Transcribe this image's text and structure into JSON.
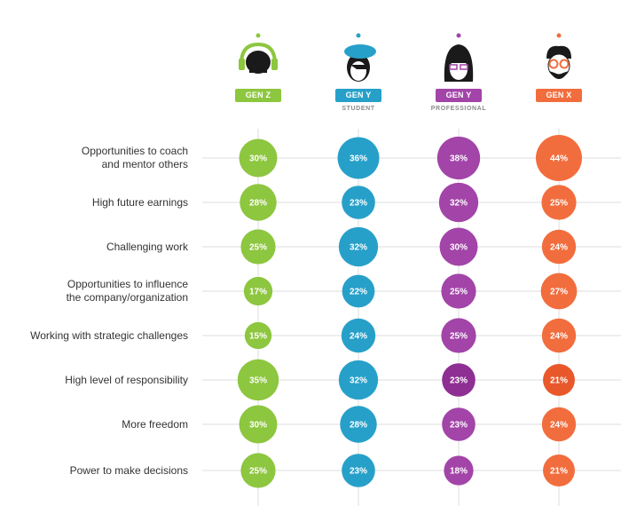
{
  "chart_data": {
    "type": "bubble",
    "groups": [
      {
        "label": "GEN Z",
        "sublabel": "",
        "color": "#8dc63f"
      },
      {
        "label": "GEN Y",
        "sublabel": "STUDENT",
        "color": "#27a0c9"
      },
      {
        "label": "GEN Y",
        "sublabel": "PROFESSIONAL",
        "color": "#a244a8"
      },
      {
        "label": "GEN X",
        "sublabel": "",
        "color": "#f26d3d"
      }
    ],
    "categories": [
      "Opportunities to coach and mentor others",
      "High future earnings",
      "Challenging work",
      "Opportunities to influence the company/organization",
      "Working with strategic challenges",
      "High level of responsibility",
      "More freedom",
      "Power to make decisions"
    ],
    "category_lines": [
      [
        "Opportunities to coach",
        "and mentor others"
      ],
      [
        "High future earnings"
      ],
      [
        "Challenging work"
      ],
      [
        "Opportunities to influence",
        "the company/organization"
      ],
      [
        "Working with strategic challenges"
      ],
      [
        "High level of responsibility"
      ],
      [
        "More freedom"
      ],
      [
        "Power to make decisions"
      ]
    ],
    "series": [
      {
        "name": "GEN Z",
        "values": [
          30,
          28,
          25,
          17,
          15,
          35,
          30,
          25
        ]
      },
      {
        "name": "GEN Y STUDENT",
        "values": [
          36,
          23,
          32,
          22,
          24,
          32,
          28,
          23
        ]
      },
      {
        "name": "GEN Y PROFESSIONAL",
        "values": [
          38,
          32,
          30,
          25,
          25,
          23,
          23,
          18
        ]
      },
      {
        "name": "GEN X",
        "values": [
          44,
          25,
          24,
          27,
          24,
          21,
          24,
          21
        ]
      }
    ],
    "unit": "%",
    "bubble_color_variants": [
      [
        "#8dc63f",
        "#27a0c9",
        "#a244a8",
        "#f26d3d"
      ],
      [
        "#8dc63f",
        "#27a0c9",
        "#a244a8",
        "#f26d3d"
      ],
      [
        "#8dc63f",
        "#27a0c9",
        "#a244a8",
        "#f26d3d"
      ],
      [
        "#8dc63f",
        "#27a0c9",
        "#a244a8",
        "#f26d3d"
      ],
      [
        "#8dc63f",
        "#27a0c9",
        "#a244a8",
        "#f26d3d"
      ],
      [
        "#8dc63f",
        "#27a0c9",
        "#8e2f93",
        "#e8582b"
      ],
      [
        "#8dc63f",
        "#27a0c9",
        "#a244a8",
        "#f26d3d"
      ],
      [
        "#8dc63f",
        "#27a0c9",
        "#a244a8",
        "#f26d3d"
      ]
    ],
    "grid": true
  },
  "icons": [
    "headphones-person-icon",
    "beret-person-icon",
    "glasses-woman-icon",
    "bearded-man-icon"
  ]
}
